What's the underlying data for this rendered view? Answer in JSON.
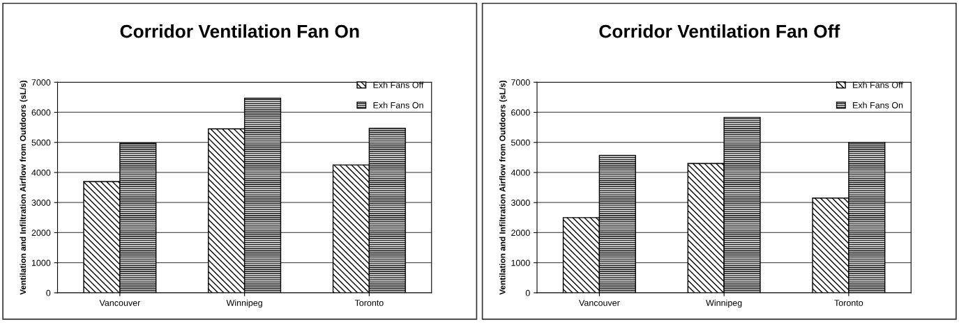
{
  "chart_data": [
    {
      "type": "bar",
      "title": "Corridor Ventilation Fan On",
      "ylabel": "Ventilation and Infiltration Airflow from Outdoors (sL/s)",
      "categories": [
        "Vancouver",
        "Winnipeg",
        "Toronto"
      ],
      "series": [
        {
          "name": "Exh Fans Off",
          "color": "#000000",
          "values": [
            3700,
            5450,
            4250
          ]
        },
        {
          "name": "Exh Fans On",
          "color": "#000000",
          "values": [
            4970,
            6470,
            5470
          ]
        }
      ],
      "ylim": [
        0,
        7000
      ],
      "yticks": [
        0,
        1000,
        2000,
        3000,
        4000,
        5000,
        6000,
        7000
      ],
      "grid": "y",
      "legend": "top right"
    },
    {
      "type": "bar",
      "title": "Corridor Ventilation Fan Off",
      "ylabel": "Ventilation and Infiltration Airflow from Outdoors (sL/s)",
      "categories": [
        "Vancouver",
        "Winnipeg",
        "Toronto"
      ],
      "series": [
        {
          "name": "Exh Fans Off",
          "color": "#000000",
          "values": [
            2500,
            4300,
            3150
          ]
        },
        {
          "name": "Exh Fans On",
          "color": "#000000",
          "values": [
            4570,
            5830,
            5000
          ]
        }
      ],
      "ylim": [
        0,
        7000
      ],
      "yticks": [
        0,
        1000,
        2000,
        3000,
        4000,
        5000,
        6000,
        7000
      ],
      "grid": "y",
      "legend": "top right"
    }
  ]
}
